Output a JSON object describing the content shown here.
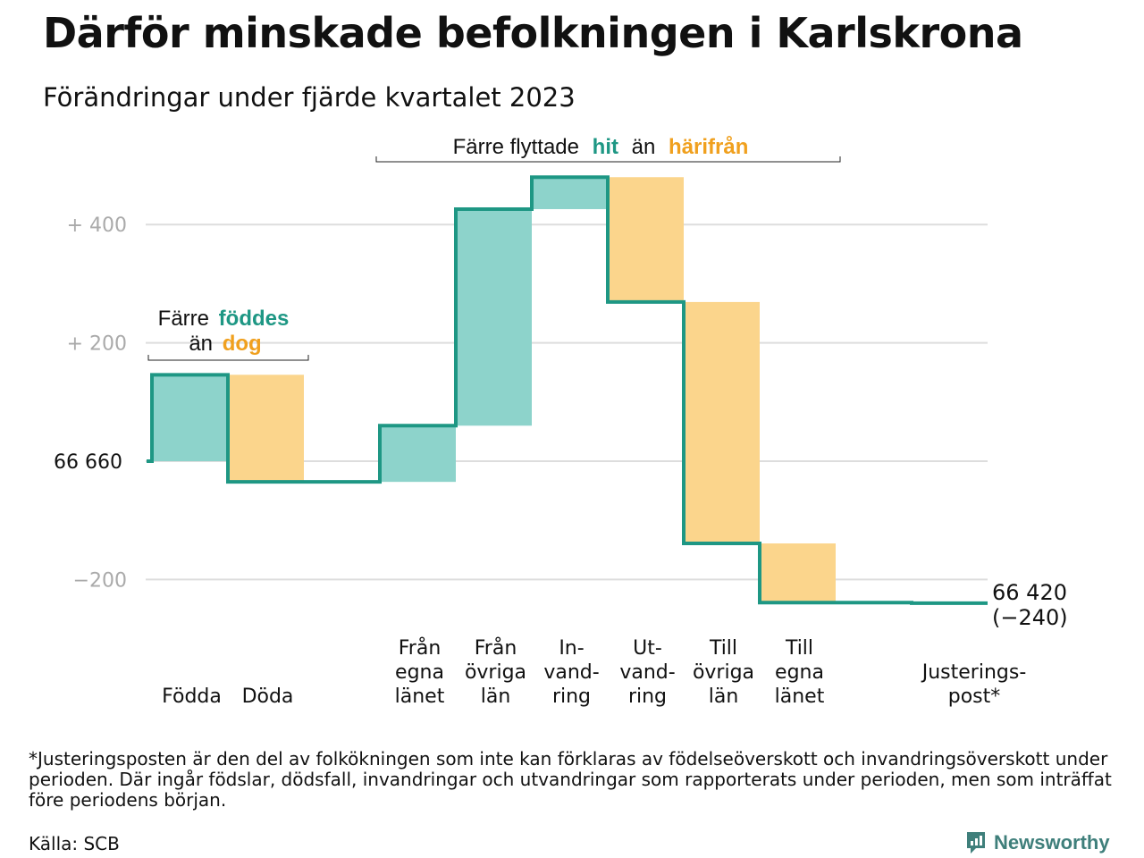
{
  "header": {
    "title": "Därför minskade befolkningen i Karlskrona",
    "subtitle": "Förändringar under fjärde kvartalet 2023"
  },
  "colors": {
    "increase_fill": "#8dd3cb",
    "decrease_fill": "#fbd58c",
    "step_line": "#1e9784",
    "accent_teal": "#1e9784",
    "accent_orange": "#f0a01e",
    "grid": "#dddddd",
    "tick_label": "#aaaaaa"
  },
  "annotations": {
    "births": {
      "line1_pre": "Färre",
      "line1_accent": "föddes",
      "line2_pre": "än",
      "line2_accent": "dog"
    },
    "migration": {
      "pre": "Färre flyttade",
      "accent1": "hit",
      "mid": "än",
      "accent2": "härifrån"
    }
  },
  "chart_data": {
    "type": "waterfall",
    "start_value": 66660,
    "start_label": "66  660",
    "end_value": 66420,
    "end_label": "66 420",
    "end_change_label": "(−240)",
    "y_ticks": [
      {
        "value": 400,
        "label": "+  400"
      },
      {
        "value": 200,
        "label": "+  200"
      },
      {
        "value": -200,
        "label": "−200"
      }
    ],
    "ylim": [
      -240,
      480
    ],
    "grid": true,
    "steps": [
      {
        "label": [
          "Födda"
        ],
        "value": 146,
        "direction": "in"
      },
      {
        "label": [
          "Döda"
        ],
        "value": -181,
        "direction": "out"
      },
      {
        "label": [
          ""
        ],
        "value": 0,
        "direction": "none"
      },
      {
        "label": [
          "Från",
          "egna",
          "länet"
        ],
        "value": 95,
        "direction": "in"
      },
      {
        "label": [
          "Från",
          "övriga",
          "län"
        ],
        "value": 366,
        "direction": "in"
      },
      {
        "label": [
          "In-",
          "vand-",
          "ring"
        ],
        "value": 54,
        "direction": "in"
      },
      {
        "label": [
          "Ut-",
          "vand-",
          "ring"
        ],
        "value": -211,
        "direction": "out"
      },
      {
        "label": [
          "Till",
          "övriga",
          "län"
        ],
        "value": -408,
        "direction": "out"
      },
      {
        "label": [
          "Till",
          "egna",
          "länet"
        ],
        "value": -100,
        "direction": "out"
      },
      {
        "label": [
          ""
        ],
        "value": 0,
        "direction": "none"
      },
      {
        "label": [
          "Justerings-",
          "post*"
        ],
        "value": -1,
        "direction": "out"
      }
    ]
  },
  "footer": {
    "footnote": "*Justeringsposten är den del av folkökningen som inte kan förklaras av födelseöverskott och invandringsöverskott under perioden. Där ingår födslar, dödsfall, invandringar och utvandringar som rapporterats under perioden, men som inträffat före periodens början.",
    "source": "Källa: SCB",
    "brand": "Newsworthy",
    "brand_icon": "newsworthy-logo-icon"
  }
}
